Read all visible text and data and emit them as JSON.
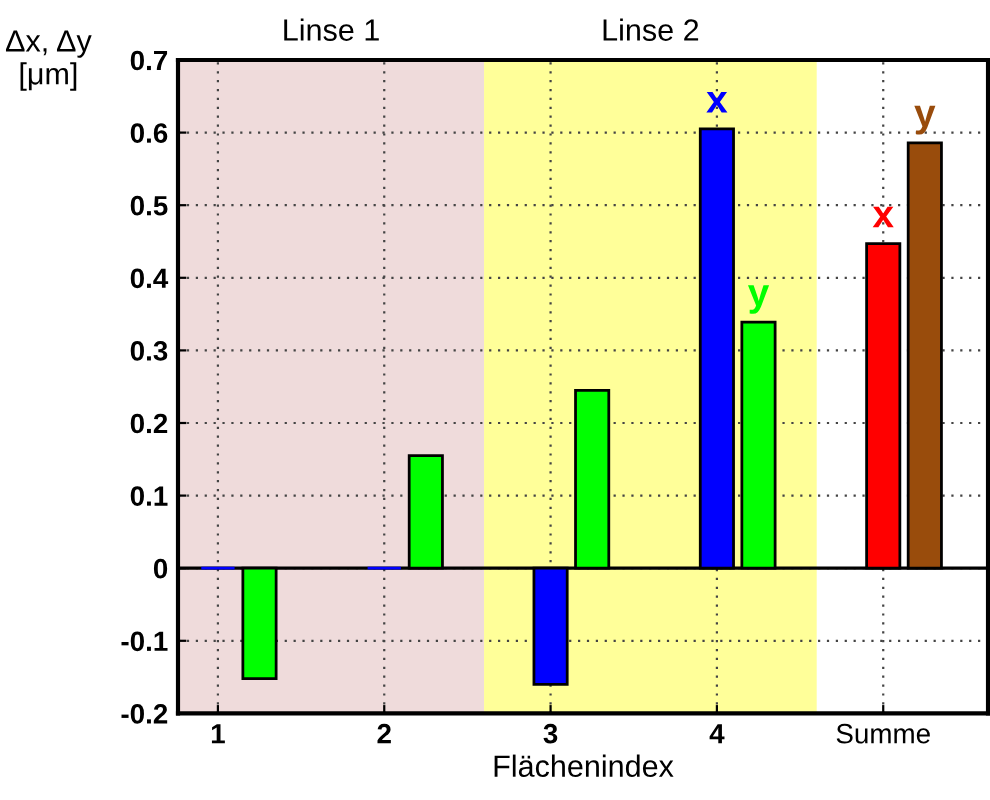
{
  "chart_data": {
    "type": "bar",
    "xlabel": "Flächenindex",
    "ylabel": "Δx, Δy\n[μm]",
    "series": [
      {
        "x": [
          1,
          2,
          3,
          4,
          5
        ],
        "values": [
          0,
          0,
          -0.16,
          0.605,
          0.447
        ],
        "colors": [
          "#0000ff",
          "#0000ff",
          "#0000ff",
          "#0000ff",
          "#ff0000"
        ]
      },
      {
        "x": [
          1.25,
          2.25,
          3.25,
          4.25,
          5.25
        ],
        "values": [
          -0.152,
          0.155,
          0.245,
          0.339,
          0.586
        ],
        "colors": [
          "#00ff00",
          "#00ff00",
          "#00ff00",
          "#00ff00",
          "#994c0c"
        ]
      }
    ],
    "xlim": [
      0.76,
      5.63
    ],
    "xticks": [
      1,
      2,
      3,
      4,
      {
        "value": 5,
        "label": "Summe"
      }
    ],
    "ylim": [
      -0.2,
      0.7
    ],
    "yticks": [
      -0.2,
      -0.1,
      0,
      0.1,
      0.2,
      0.3,
      0.4,
      0.5,
      0.6,
      0.7
    ],
    "bands": [
      {
        "axis": "x",
        "from": 0.76,
        "to": 2.6,
        "label": "Linse 1",
        "color": "#efdbdb"
      },
      {
        "axis": "x",
        "from": 2.6,
        "to": 4.6,
        "label": "Linse 2",
        "color": "#ffff99"
      }
    ],
    "ref_lines": [
      {
        "axis": "y",
        "value": 0,
        "color": "#000000",
        "line_style": "solid"
      }
    ],
    "annotations": [
      {
        "text": "x",
        "x": 4,
        "y": 0.605
      },
      {
        "text": "y",
        "x": 4.25,
        "y": 0.339
      },
      {
        "text": "x",
        "x": 5,
        "y": 0.447
      },
      {
        "text": "y",
        "x": 5.25,
        "y": 0.586
      }
    ],
    "grid": true,
    "legend": false
  }
}
